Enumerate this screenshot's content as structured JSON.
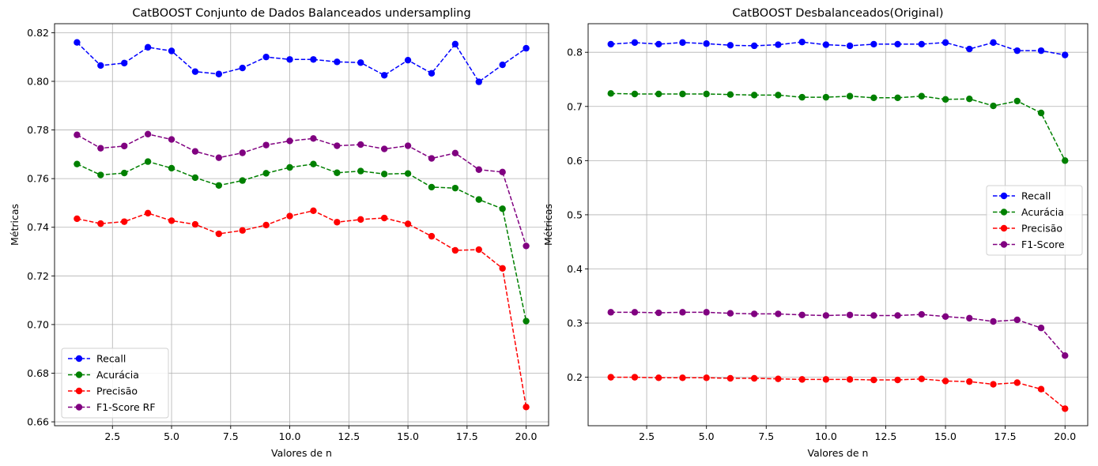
{
  "chart_data": [
    {
      "type": "line",
      "title": "CatBOOST Conjunto de Dados Balanceados undersampling",
      "xlabel": "Valores de n",
      "ylabel": "Métricas",
      "xlim": [
        0.05,
        20.95
      ],
      "ylim": [
        0.6584,
        0.8237
      ],
      "xticks": [
        2.5,
        5.0,
        7.5,
        10.0,
        12.5,
        15.0,
        17.5,
        20.0
      ],
      "xtick_labels": [
        "2.5",
        "5.0",
        "7.5",
        "10.0",
        "12.5",
        "15.0",
        "17.5",
        "20.0"
      ],
      "yticks": [
        0.66,
        0.68,
        0.7,
        0.72,
        0.74,
        0.76,
        0.78,
        0.8,
        0.82
      ],
      "ytick_labels": [
        "0.66",
        "0.68",
        "0.70",
        "0.72",
        "0.74",
        "0.76",
        "0.78",
        "0.80",
        "0.82"
      ],
      "grid": true,
      "legend_position": "lower-left",
      "x": [
        1,
        2,
        3,
        4,
        5,
        6,
        7,
        8,
        9,
        10,
        11,
        12,
        13,
        14,
        15,
        16,
        17,
        18,
        19,
        20
      ],
      "series": [
        {
          "name": "Recall",
          "color": "#0000ff",
          "values": [
            0.816,
            0.8065,
            0.8075,
            0.814,
            0.8125,
            0.804,
            0.803,
            0.8055,
            0.81,
            0.809,
            0.809,
            0.808,
            0.8077,
            0.8025,
            0.8087,
            0.8033,
            0.8153,
            0.7998,
            0.8068,
            0.8136
          ]
        },
        {
          "name": "Acurácia",
          "color": "#008000",
          "values": [
            0.766,
            0.7615,
            0.7623,
            0.767,
            0.7643,
            0.7604,
            0.7572,
            0.7592,
            0.7622,
            0.7646,
            0.766,
            0.7624,
            0.7631,
            0.7619,
            0.7621,
            0.7565,
            0.7561,
            0.7514,
            0.7476,
            0.7014
          ]
        },
        {
          "name": "Precisão",
          "color": "#ff0000",
          "values": [
            0.7435,
            0.7415,
            0.7423,
            0.7458,
            0.7427,
            0.7412,
            0.7373,
            0.7387,
            0.7409,
            0.7446,
            0.7468,
            0.7421,
            0.7432,
            0.7438,
            0.7414,
            0.7363,
            0.7305,
            0.7308,
            0.7231,
            0.6661
          ]
        },
        {
          "name": "F1-Score RF",
          "color": "#800080",
          "values": [
            0.778,
            0.7725,
            0.7734,
            0.7783,
            0.7761,
            0.7712,
            0.7686,
            0.7706,
            0.7738,
            0.7755,
            0.7765,
            0.7735,
            0.774,
            0.7722,
            0.7735,
            0.7683,
            0.7705,
            0.7637,
            0.7627,
            0.7323
          ]
        }
      ]
    },
    {
      "type": "line",
      "title": "CatBOOST Desbalanceados(Original)",
      "xlabel": "Valores de n",
      "ylabel": "Métricas",
      "xlim": [
        0.05,
        20.95
      ],
      "ylim": [
        0.1105,
        0.8528
      ],
      "xticks": [
        2.5,
        5.0,
        7.5,
        10.0,
        12.5,
        15.0,
        17.5,
        20.0
      ],
      "xtick_labels": [
        "2.5",
        "5.0",
        "7.5",
        "10.0",
        "12.5",
        "15.0",
        "17.5",
        "20.0"
      ],
      "yticks": [
        0.2,
        0.3,
        0.4,
        0.5,
        0.6,
        0.7,
        0.8
      ],
      "ytick_labels": [
        "0.2",
        "0.3",
        "0.4",
        "0.5",
        "0.6",
        "0.7",
        "0.8"
      ],
      "grid": true,
      "legend_position": "center-right",
      "x": [
        1,
        2,
        3,
        4,
        5,
        6,
        7,
        8,
        9,
        10,
        11,
        12,
        13,
        14,
        15,
        16,
        17,
        18,
        19,
        20
      ],
      "series": [
        {
          "name": "Recall",
          "color": "#0000ff",
          "values": [
            0.815,
            0.818,
            0.815,
            0.818,
            0.816,
            0.813,
            0.812,
            0.814,
            0.819,
            0.814,
            0.812,
            0.815,
            0.815,
            0.815,
            0.818,
            0.806,
            0.818,
            0.803,
            0.803,
            0.795
          ]
        },
        {
          "name": "Acurácia",
          "color": "#008000",
          "values": [
            0.724,
            0.723,
            0.723,
            0.723,
            0.723,
            0.722,
            0.721,
            0.721,
            0.717,
            0.717,
            0.719,
            0.716,
            0.716,
            0.719,
            0.713,
            0.714,
            0.701,
            0.71,
            0.688,
            0.6
          ]
        },
        {
          "name": "Precisão",
          "color": "#ff0000",
          "values": [
            0.2,
            0.2,
            0.199,
            0.199,
            0.199,
            0.198,
            0.198,
            0.197,
            0.196,
            0.196,
            0.196,
            0.195,
            0.195,
            0.197,
            0.193,
            0.192,
            0.187,
            0.19,
            0.178,
            0.142
          ]
        },
        {
          "name": "F1-Score",
          "color": "#800080",
          "values": [
            0.32,
            0.32,
            0.319,
            0.32,
            0.32,
            0.318,
            0.317,
            0.317,
            0.315,
            0.314,
            0.315,
            0.314,
            0.314,
            0.316,
            0.312,
            0.309,
            0.303,
            0.306,
            0.291,
            0.24
          ]
        }
      ]
    }
  ]
}
